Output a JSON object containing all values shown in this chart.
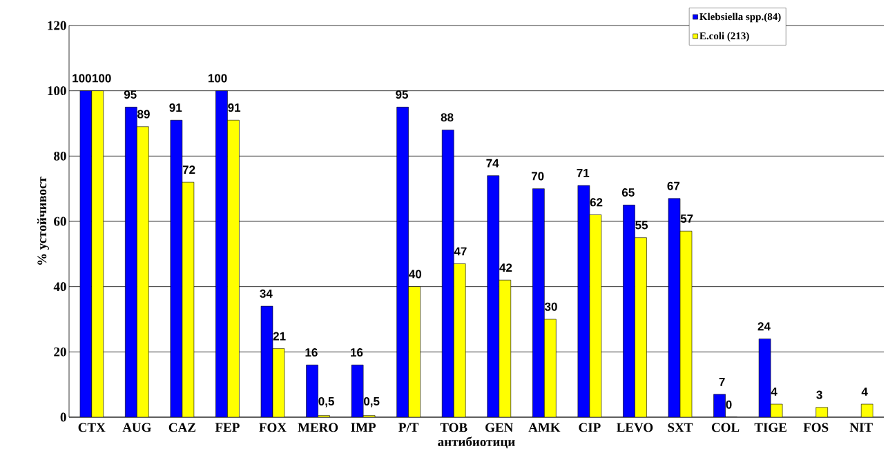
{
  "chart_data": {
    "type": "bar",
    "xlabel": "антибиотици",
    "ylabel": "% устойчивост",
    "categories": [
      "CTX",
      "AUG",
      "CAZ",
      "FEP",
      "FOX",
      "MERO",
      "IMP",
      "P/T",
      "TOB",
      "GEN",
      "AMK",
      "CIP",
      "LEVO",
      "SXT",
      "COL",
      "TIGE",
      "FOS",
      "NIT"
    ],
    "series": [
      {
        "name": "Klebsiella spp.(84)",
        "color": "#0000ff",
        "values": [
          100,
          95,
          91,
          100,
          34,
          16,
          16,
          95,
          88,
          74,
          70,
          71,
          65,
          67,
          7,
          24,
          null,
          null
        ],
        "value_labels": [
          "100",
          "95",
          "91",
          "100",
          "34",
          "16",
          "16",
          "95",
          "88",
          "74",
          "70",
          "71",
          "65",
          "67",
          "7",
          "24",
          null,
          null
        ]
      },
      {
        "name": "E.coli (213)",
        "color": "#ffff00",
        "values": [
          100,
          89,
          72,
          91,
          21,
          0.5,
          0.5,
          40,
          47,
          42,
          30,
          62,
          55,
          57,
          0,
          4,
          3,
          4
        ],
        "value_labels": [
          "100",
          "89",
          "72",
          "91",
          "21",
          "0,5",
          "0,5",
          "40",
          "47",
          "42",
          "30",
          "62",
          "55",
          "57",
          "0",
          "4",
          "3",
          "4"
        ]
      }
    ],
    "ylim": [
      0,
      120
    ],
    "yticks": [
      0,
      20,
      40,
      60,
      80,
      100,
      120
    ],
    "grid": "y",
    "legend": "top right"
  }
}
